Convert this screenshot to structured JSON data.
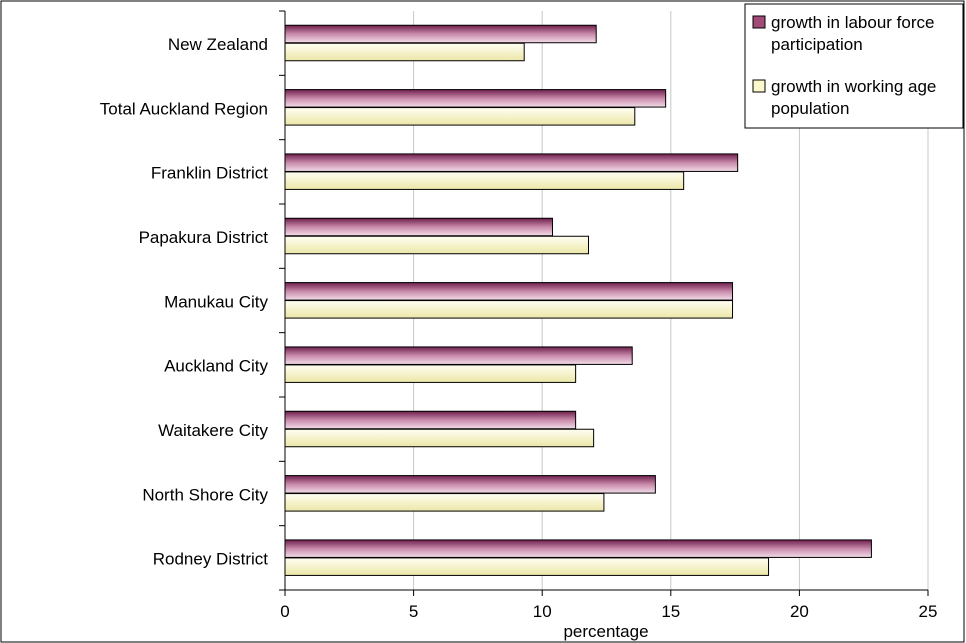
{
  "chart_data": {
    "type": "bar",
    "orientation": "horizontal",
    "categories": [
      "New Zealand",
      "Total Auckland Region",
      "Franklin District",
      "Papakura District",
      "Manukau City",
      "Auckland City",
      "Waitakere City",
      "North Shore City",
      "Rodney District"
    ],
    "series": [
      {
        "name": "growth in labour force participation",
        "legend_lines": [
          "growth in labour force",
          "participation"
        ],
        "color": "#a24a78",
        "values": [
          12.1,
          14.8,
          17.6,
          10.4,
          17.4,
          13.5,
          11.3,
          14.4,
          22.8
        ]
      },
      {
        "name": "growth in working age population",
        "legend_lines": [
          "growth in working age",
          "population"
        ],
        "color": "#f3f0bc",
        "values": [
          9.3,
          13.6,
          15.5,
          11.8,
          17.4,
          11.3,
          12.0,
          12.4,
          18.8
        ]
      }
    ],
    "xlabel": "percentage",
    "ylabel": "",
    "xlim": [
      0,
      25
    ],
    "xticks": [
      "0",
      "5",
      "10",
      "15",
      "20",
      "25"
    ],
    "grid": "vertical",
    "legend_position": "top-right"
  }
}
